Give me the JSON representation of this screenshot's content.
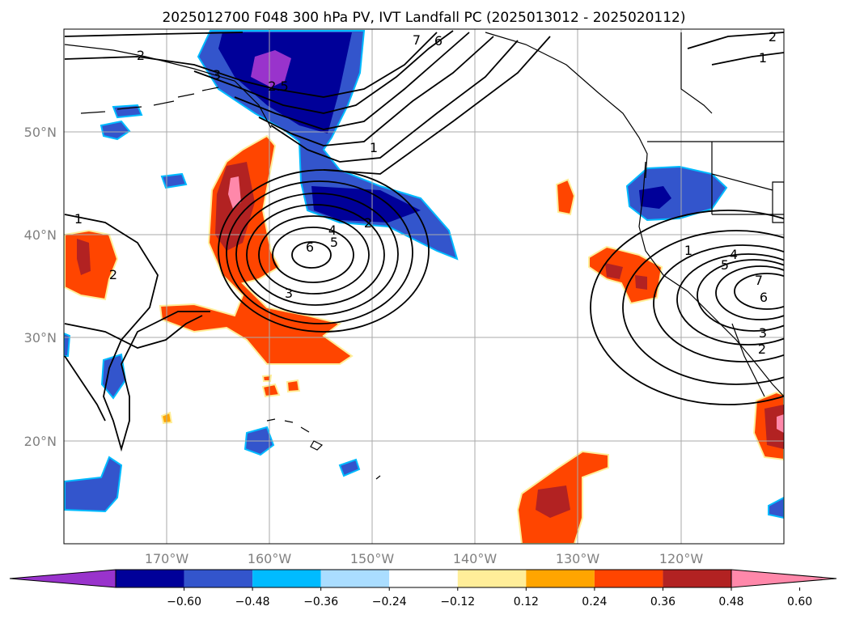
{
  "title": "2025012700 F048 300 hPa PV, IVT Landfall PC (2025013012 - 2025020112)",
  "map": {
    "lon_range": [
      -180,
      -110
    ],
    "lat_range": [
      10,
      60
    ],
    "lat_labels": [
      "50°N",
      "40°N",
      "30°N",
      "20°N"
    ],
    "lon_labels": [
      "170°W",
      "160°W",
      "150°W",
      "140°W",
      "130°W",
      "120°W"
    ],
    "gridlines": true,
    "contour_labels": [
      "2",
      "3",
      "2.5",
      "7",
      "6",
      "1",
      "1",
      "2",
      "4",
      "5",
      "6",
      "3",
      "1",
      "2",
      "5",
      "4",
      "7",
      "6",
      "3",
      "2",
      "1",
      "2"
    ]
  },
  "colorbar": {
    "tick_labels": [
      "−0.60",
      "−0.48",
      "−0.36",
      "−0.24",
      "−0.12",
      "0.12",
      "0.24",
      "0.36",
      "0.48",
      "0.60"
    ],
    "colors": [
      "#9933cc",
      "#000099",
      "#3355cc",
      "#00bbff",
      "#aaddff",
      "#ffffff",
      "#ffee99",
      "#ffa500",
      "#ff4500",
      "#b22222",
      "#ff88aa"
    ],
    "extend": "both"
  },
  "chart_data": {
    "type": "heatmap",
    "title": "2025012700 F048 300 hPa PV, IVT Landfall PC (2025013012 - 2025020112)",
    "x_ticks": [
      "170°W",
      "160°W",
      "150°W",
      "140°W",
      "130°W",
      "120°W"
    ],
    "y_ticks": [
      "50°N",
      "40°N",
      "30°N",
      "20°N"
    ],
    "levels": [
      -0.6,
      -0.48,
      -0.36,
      -0.24,
      -0.12,
      0.12,
      0.24,
      0.36,
      0.48,
      0.6
    ],
    "contour_values": [
      1,
      2,
      3,
      4,
      5,
      6,
      7
    ]
  }
}
